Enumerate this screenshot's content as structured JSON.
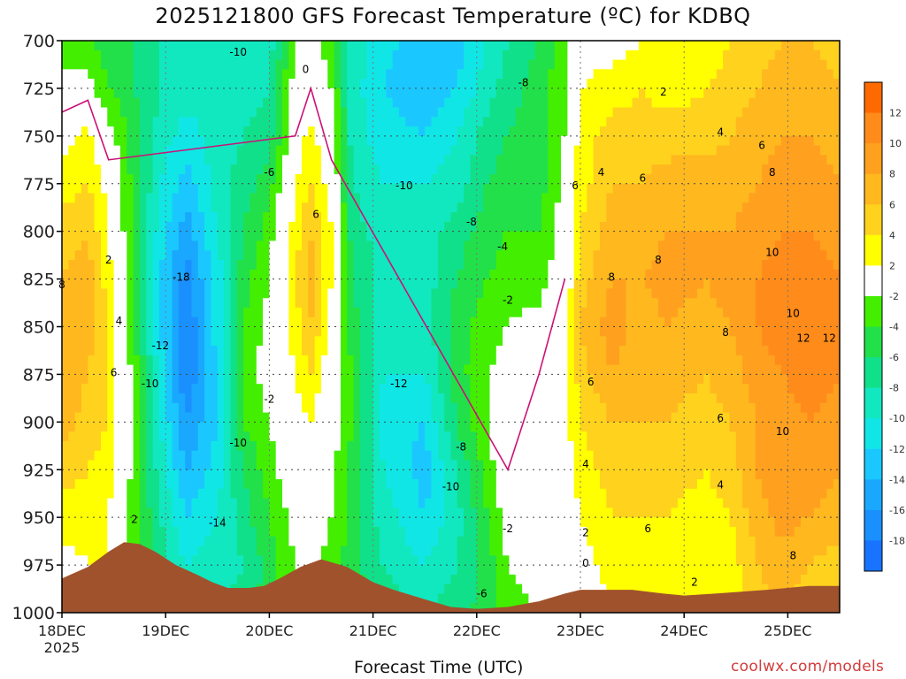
{
  "page": {
    "title": "2025121800 GFS Forecast Temperature (ºC) for KDBQ",
    "xlabel": "Forecast Time (UTC)",
    "credit": "coolwx.com/models"
  },
  "chart_data": {
    "type": "heatmap",
    "title": "2025121800 GFS Forecast Temperature (ºC) for KDBQ",
    "xlabel": "Forecast Time (UTC)",
    "ylabel": "",
    "x_ticks": [
      "18DEC",
      "19DEC",
      "20DEC",
      "21DEC",
      "22DEC",
      "23DEC",
      "24DEC",
      "25DEC"
    ],
    "x_sub_label": "2025",
    "x_range_days": [
      0,
      7.5
    ],
    "y_ticks": [
      700,
      725,
      750,
      775,
      800,
      825,
      850,
      875,
      900,
      925,
      950,
      975,
      1000
    ],
    "y_range": [
      700,
      1000
    ],
    "y_inverted": true,
    "grid": true,
    "colorbar": {
      "labels": [
        "12",
        "10",
        "8",
        "6",
        "4",
        "2",
        "-2",
        "-4",
        "-6",
        "-8",
        "-10",
        "-12",
        "-14",
        "-16",
        "-18"
      ],
      "bins": [
        {
          "lo": 12,
          "hi": 14,
          "color": "#ff6a00"
        },
        {
          "lo": 10,
          "hi": 12,
          "color": "#ff8c1a"
        },
        {
          "lo": 8,
          "hi": 10,
          "color": "#ffa01e"
        },
        {
          "lo": 6,
          "hi": 8,
          "color": "#ffb81e"
        },
        {
          "lo": 4,
          "hi": 6,
          "color": "#ffd21e"
        },
        {
          "lo": 2,
          "hi": 4,
          "color": "#ffff00"
        },
        {
          "lo": -2,
          "hi": 2,
          "color": "#ffffff"
        },
        {
          "lo": -4,
          "hi": -2,
          "color": "#44ee00"
        },
        {
          "lo": -6,
          "hi": -4,
          "color": "#22e04a"
        },
        {
          "lo": -8,
          "hi": -6,
          "color": "#11e08a"
        },
        {
          "lo": -10,
          "hi": -8,
          "color": "#11e8c0"
        },
        {
          "lo": -12,
          "hi": -10,
          "color": "#11e6e6"
        },
        {
          "lo": -14,
          "hi": -12,
          "color": "#1ac8ff"
        },
        {
          "lo": -16,
          "hi": -14,
          "color": "#1aa8ff"
        },
        {
          "lo": -18,
          "hi": -16,
          "color": "#1a90ff"
        },
        {
          "lo": -20,
          "hi": -18,
          "color": "#1874ff"
        }
      ]
    },
    "colors": {
      "terrain": "#a0522d",
      "freezing_line": "#cc1177"
    },
    "ground_pressure": [
      [
        0,
        982
      ],
      [
        0.25,
        976
      ],
      [
        0.45,
        968
      ],
      [
        0.6,
        963
      ],
      [
        0.75,
        964
      ],
      [
        0.9,
        968
      ],
      [
        1.1,
        975
      ],
      [
        1.3,
        980
      ],
      [
        1.45,
        984
      ],
      [
        1.6,
        987
      ],
      [
        1.8,
        987
      ],
      [
        1.95,
        986
      ],
      [
        2.1,
        982
      ],
      [
        2.3,
        976
      ],
      [
        2.5,
        972
      ],
      [
        2.75,
        976
      ],
      [
        3.0,
        984
      ],
      [
        3.2,
        988
      ],
      [
        3.5,
        993
      ],
      [
        3.75,
        997
      ],
      [
        4.0,
        998
      ],
      [
        4.3,
        997
      ],
      [
        4.6,
        994
      ],
      [
        4.85,
        990
      ],
      [
        5.0,
        988
      ],
      [
        5.25,
        988
      ],
      [
        5.5,
        988
      ],
      [
        5.8,
        990
      ],
      [
        6.0,
        991
      ],
      [
        6.3,
        990
      ],
      [
        6.8,
        988
      ],
      [
        7.2,
        986
      ],
      [
        7.5,
        986
      ]
    ],
    "temperature_columns": [
      {
        "day": 0.0,
        "t": [
          -3,
          -1,
          1,
          3,
          5,
          6,
          8,
          8,
          7,
          5,
          3,
          1,
          0
        ]
      },
      {
        "day": 0.25,
        "t": [
          -4,
          -1,
          3,
          4,
          6,
          7,
          7,
          6,
          5,
          4,
          3,
          2,
          1
        ]
      },
      {
        "day": 0.45,
        "t": [
          -5,
          -4,
          -1,
          1,
          2,
          3,
          4,
          4,
          4,
          3,
          2,
          2,
          2
        ]
      },
      {
        "day": 0.7,
        "t": [
          -6,
          -6,
          -5,
          -5,
          -5,
          -4,
          -4,
          -3,
          -3,
          -3,
          -3,
          -3,
          -3
        ]
      },
      {
        "day": 0.95,
        "t": [
          -8,
          -8,
          -9,
          -10,
          -11,
          -12,
          -12,
          -11,
          -10,
          -9,
          -8,
          -7,
          -6
        ]
      },
      {
        "day": 1.2,
        "t": [
          -8,
          -9,
          -11,
          -13,
          -15,
          -17,
          -18,
          -18,
          -16,
          -14,
          -12,
          -10,
          -8
        ]
      },
      {
        "day": 1.5,
        "t": [
          -10,
          -10,
          -9,
          -9,
          -10,
          -11,
          -11,
          -12,
          -12,
          -11,
          -10,
          -9,
          -8
        ]
      },
      {
        "day": 1.75,
        "t": [
          -10,
          -9,
          -8,
          -7,
          -6,
          -5,
          -4,
          -3,
          -4,
          -6,
          -7,
          -8,
          -7
        ]
      },
      {
        "day": 2.0,
        "t": [
          -9,
          -8,
          -7,
          -5,
          -3,
          -2,
          -1,
          -1,
          -2,
          -3,
          -4,
          -5,
          -5
        ]
      },
      {
        "day": 2.25,
        "t": [
          -2,
          -1,
          0,
          2,
          3,
          4,
          3,
          2,
          1,
          0,
          -1,
          -2,
          -2
        ]
      },
      {
        "day": 2.4,
        "t": [
          -1,
          0,
          3,
          4,
          6,
          7,
          6,
          4,
          2,
          1,
          0,
          -1,
          -1
        ]
      },
      {
        "day": 2.6,
        "t": [
          -3,
          -2,
          -1,
          1,
          2,
          2,
          1,
          0,
          -1,
          -1,
          -2,
          -3,
          -3
        ]
      },
      {
        "day": 2.8,
        "t": [
          -9,
          -9,
          -9,
          -8,
          -7,
          -6,
          -5,
          -4,
          -4,
          -5,
          -5,
          -5,
          -5
        ]
      },
      {
        "day": 3.1,
        "t": [
          -11,
          -12,
          -11,
          -10,
          -9,
          -9,
          -9,
          -10,
          -11,
          -10,
          -9,
          -8,
          -7
        ]
      },
      {
        "day": 3.5,
        "t": [
          -14,
          -14,
          -12,
          -10,
          -9,
          -9,
          -9,
          -10,
          -12,
          -13,
          -12,
          -10,
          -8
        ]
      },
      {
        "day": 3.8,
        "t": [
          -13,
          -12,
          -10,
          -9,
          -7,
          -6,
          -5,
          -5,
          -6,
          -8,
          -9,
          -8,
          -7
        ]
      },
      {
        "day": 4.1,
        "t": [
          -10,
          -9,
          -7,
          -6,
          -5,
          -4,
          -3,
          -2,
          -2,
          -3,
          -4,
          -5,
          -5
        ]
      },
      {
        "day": 4.3,
        "t": [
          -8,
          -7,
          -6,
          -5,
          -4,
          -3,
          -2,
          -1,
          0,
          0,
          -1,
          -2,
          -3
        ]
      },
      {
        "day": 4.6,
        "t": [
          -6,
          -5,
          -5,
          -5,
          -4,
          -3,
          -1,
          0,
          1,
          1,
          0,
          -1,
          -2
        ]
      },
      {
        "day": 4.85,
        "t": [
          -3,
          -2,
          -2,
          -1,
          -1,
          0,
          1,
          1,
          1,
          1,
          0,
          0,
          -1
        ]
      },
      {
        "day": 5.0,
        "t": [
          1,
          2,
          3,
          3,
          4,
          5,
          6,
          5,
          4,
          3,
          2,
          1,
          0
        ]
      },
      {
        "day": 5.3,
        "t": [
          1,
          3,
          5,
          6,
          7,
          8,
          9,
          8,
          6,
          5,
          4,
          3,
          2
        ]
      },
      {
        "day": 5.6,
        "t": [
          2,
          4,
          5,
          6,
          7,
          8,
          7,
          7,
          6,
          5,
          4,
          3,
          2
        ]
      },
      {
        "day": 5.85,
        "t": [
          2,
          3,
          5,
          7,
          8,
          9,
          8,
          7,
          6,
          5,
          4,
          3,
          2
        ]
      },
      {
        "day": 6.2,
        "t": [
          2,
          4,
          5,
          7,
          8,
          8,
          7,
          6,
          5,
          4,
          3,
          2,
          2
        ]
      },
      {
        "day": 6.45,
        "t": [
          4,
          5,
          6,
          7,
          8,
          9,
          8,
          7,
          6,
          5,
          4,
          3,
          3
        ]
      },
      {
        "day": 6.7,
        "t": [
          5,
          6,
          7,
          8,
          9,
          10,
          10,
          9,
          8,
          8,
          7,
          6,
          5
        ]
      },
      {
        "day": 6.95,
        "t": [
          6,
          7,
          8,
          9,
          10,
          11,
          11,
          10,
          9,
          10,
          9,
          7,
          6
        ]
      },
      {
        "day": 7.2,
        "t": [
          6,
          7,
          8,
          9,
          10,
          12,
          12,
          11,
          10,
          9,
          8,
          6,
          5
        ]
      },
      {
        "day": 7.5,
        "t": [
          5,
          6,
          7,
          8,
          9,
          10,
          11,
          10,
          9,
          8,
          7,
          5,
          4
        ]
      }
    ],
    "contour_labels": [
      {
        "day": 1.7,
        "p": 706,
        "text": "-10"
      },
      {
        "day": 2.35,
        "p": 715,
        "text": "0"
      },
      {
        "day": 4.45,
        "p": 722,
        "text": "-8"
      },
      {
        "day": 5.8,
        "p": 727,
        "text": "2"
      },
      {
        "day": 0.0,
        "p": 828,
        "text": "8"
      },
      {
        "day": 0.45,
        "p": 815,
        "text": "2"
      },
      {
        "day": 0.55,
        "p": 847,
        "text": "4"
      },
      {
        "day": 0.5,
        "p": 874,
        "text": "6"
      },
      {
        "day": 0.7,
        "p": 951,
        "text": "2"
      },
      {
        "day": 1.15,
        "p": 824,
        "text": "-18"
      },
      {
        "day": 0.95,
        "p": 860,
        "text": "-12"
      },
      {
        "day": 0.85,
        "p": 880,
        "text": "-10"
      },
      {
        "day": 1.7,
        "p": 911,
        "text": "-10"
      },
      {
        "day": 1.5,
        "p": 953,
        "text": "-14"
      },
      {
        "day": 2.0,
        "p": 769,
        "text": "-6"
      },
      {
        "day": 2.0,
        "p": 888,
        "text": "-2"
      },
      {
        "day": 2.45,
        "p": 791,
        "text": "6"
      },
      {
        "day": 3.3,
        "p": 776,
        "text": "-10"
      },
      {
        "day": 3.95,
        "p": 795,
        "text": "-8"
      },
      {
        "day": 4.25,
        "p": 808,
        "text": "-4"
      },
      {
        "day": 4.3,
        "p": 836,
        "text": "-2"
      },
      {
        "day": 3.25,
        "p": 880,
        "text": "-12"
      },
      {
        "day": 3.85,
        "p": 913,
        "text": "-8"
      },
      {
        "day": 3.75,
        "p": 934,
        "text": "-10"
      },
      {
        "day": 4.3,
        "p": 956,
        "text": "-2"
      },
      {
        "day": 4.05,
        "p": 990,
        "text": "-6"
      },
      {
        "day": 4.95,
        "p": 776,
        "text": "6"
      },
      {
        "day": 6.35,
        "p": 748,
        "text": "4"
      },
      {
        "day": 6.75,
        "p": 755,
        "text": "6"
      },
      {
        "day": 6.85,
        "p": 769,
        "text": "8"
      },
      {
        "day": 5.2,
        "p": 769,
        "text": "4"
      },
      {
        "day": 5.6,
        "p": 772,
        "text": "6"
      },
      {
        "day": 5.75,
        "p": 815,
        "text": "8"
      },
      {
        "day": 5.3,
        "p": 824,
        "text": "8"
      },
      {
        "day": 6.4,
        "p": 853,
        "text": "8"
      },
      {
        "day": 6.85,
        "p": 811,
        "text": "10"
      },
      {
        "day": 7.05,
        "p": 843,
        "text": "10"
      },
      {
        "day": 7.15,
        "p": 856,
        "text": "12"
      },
      {
        "day": 7.4,
        "p": 856,
        "text": "12"
      },
      {
        "day": 5.1,
        "p": 879,
        "text": "6"
      },
      {
        "day": 6.35,
        "p": 898,
        "text": "6"
      },
      {
        "day": 6.95,
        "p": 905,
        "text": "10"
      },
      {
        "day": 5.05,
        "p": 922,
        "text": "4"
      },
      {
        "day": 6.35,
        "p": 933,
        "text": "4"
      },
      {
        "day": 5.65,
        "p": 956,
        "text": "6"
      },
      {
        "day": 5.05,
        "p": 958,
        "text": "2"
      },
      {
        "day": 5.05,
        "p": 974,
        "text": "0"
      },
      {
        "day": 7.05,
        "p": 970,
        "text": "8"
      },
      {
        "day": 6.1,
        "p": 984,
        "text": "2"
      }
    ]
  }
}
